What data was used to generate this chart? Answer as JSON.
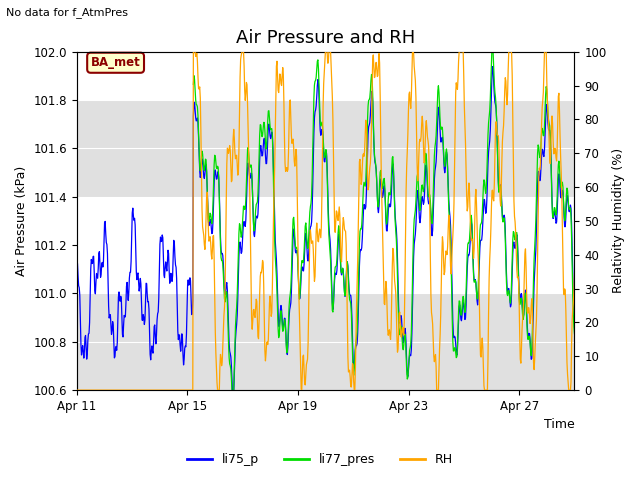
{
  "title": "Air Pressure and RH",
  "subtitle": "No data for f_AtmPres",
  "xlabel": "Time",
  "ylabel_left": "Air Pressure (kPa)",
  "ylabel_right": "Relativity Humidity (%)",
  "ylim_left": [
    100.6,
    102.0
  ],
  "ylim_right": [
    0,
    100
  ],
  "xtick_labels": [
    "Apr 11",
    "Apr 15",
    "Apr 19",
    "Apr 23",
    "Apr 27"
  ],
  "xtick_days": [
    11,
    15,
    19,
    23,
    27
  ],
  "legend_labels": [
    "li75_p",
    "li77_pres",
    "RH"
  ],
  "line_colors": [
    "blue",
    "#00dd00",
    "orange"
  ],
  "annotation_text": "BA_met",
  "bg_color": "#e0e0e0",
  "title_fontsize": 13,
  "axis_fontsize": 9,
  "tick_fontsize": 8.5
}
